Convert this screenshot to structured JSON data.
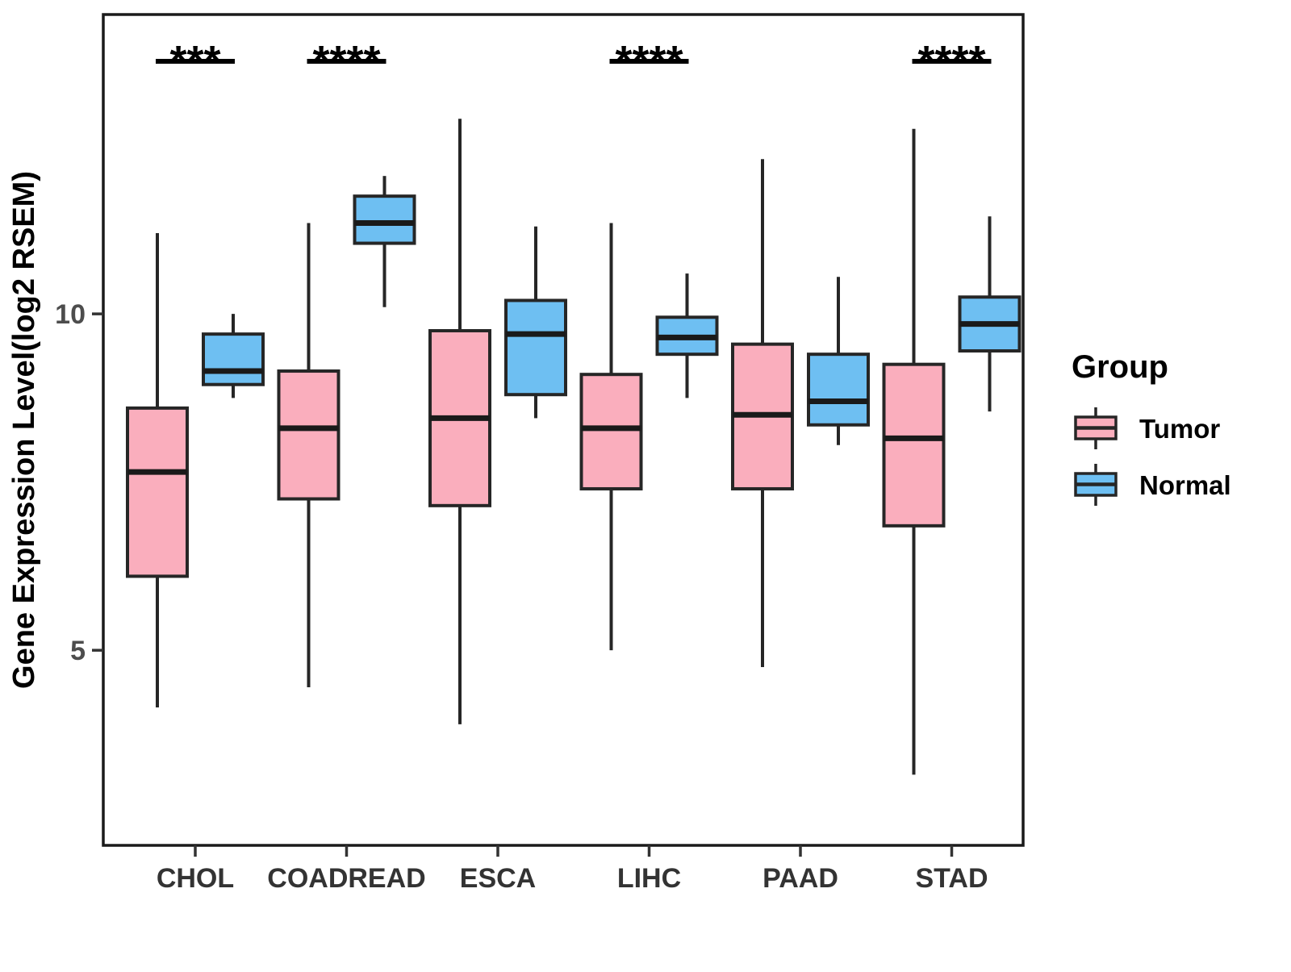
{
  "chart_data": {
    "type": "boxplot",
    "title": "",
    "xlabel": "",
    "ylabel": "Gene Expression Level(log2 RSEM)",
    "categories": [
      "CHOL",
      "COADREAD",
      "ESCA",
      "LIHC",
      "PAAD",
      "STAD"
    ],
    "groups": [
      "Tumor",
      "Normal"
    ],
    "colors": {
      "Tumor": "#FAAEBD",
      "Normal": "#6EBFF2",
      "box_stroke": "#262626",
      "y_axis_text": "#4D4D4D",
      "x_axis_text": "#333333",
      "significance": "#000000"
    },
    "y_axis": {
      "tick_labels": [
        "10",
        "5"
      ],
      "tick_values": [
        10,
        5
      ],
      "range": [
        2.1,
        14.45
      ],
      "grid": false
    },
    "series": [
      {
        "name": "Tumor",
        "boxes": [
          {
            "category": "CHOL",
            "whisker_low": 4.15,
            "q1": 6.1,
            "median": 7.65,
            "q3": 8.6,
            "whisker_high": 11.2
          },
          {
            "category": "COADREAD",
            "whisker_low": 4.45,
            "q1": 7.25,
            "median": 8.3,
            "q3": 9.15,
            "whisker_high": 11.35
          },
          {
            "category": "ESCA",
            "whisker_low": 3.9,
            "q1": 7.15,
            "median": 8.45,
            "q3": 9.75,
            "whisker_high": 12.9
          },
          {
            "category": "LIHC",
            "whisker_low": 5.0,
            "q1": 7.4,
            "median": 8.3,
            "q3": 9.1,
            "whisker_high": 11.35
          },
          {
            "category": "PAAD",
            "whisker_low": 4.75,
            "q1": 7.4,
            "median": 8.5,
            "q3": 9.55,
            "whisker_high": 12.3
          },
          {
            "category": "STAD",
            "whisker_low": 3.15,
            "q1": 6.85,
            "median": 8.15,
            "q3": 9.25,
            "whisker_high": 12.75
          }
        ]
      },
      {
        "name": "Normal",
        "boxes": [
          {
            "category": "CHOL",
            "whisker_low": 8.75,
            "q1": 8.95,
            "median": 9.15,
            "q3": 9.7,
            "whisker_high": 10.0
          },
          {
            "category": "COADREAD",
            "whisker_low": 10.1,
            "q1": 11.05,
            "median": 11.35,
            "q3": 11.75,
            "whisker_high": 12.05
          },
          {
            "category": "ESCA",
            "whisker_low": 8.45,
            "q1": 8.8,
            "median": 9.7,
            "q3": 10.2,
            "whisker_high": 11.3
          },
          {
            "category": "LIHC",
            "whisker_low": 8.75,
            "q1": 9.4,
            "median": 9.65,
            "q3": 9.95,
            "whisker_high": 10.6
          },
          {
            "category": "PAAD",
            "whisker_low": 8.05,
            "q1": 8.35,
            "median": 8.7,
            "q3": 9.4,
            "whisker_high": 10.55
          },
          {
            "category": "STAD",
            "whisker_low": 8.55,
            "q1": 9.45,
            "median": 9.85,
            "q3": 10.25,
            "whisker_high": 11.45
          }
        ]
      }
    ],
    "significance": [
      {
        "category": "CHOL",
        "label": "***"
      },
      {
        "category": "COADREAD",
        "label": "****"
      },
      {
        "category": "LIHC",
        "label": "****"
      },
      {
        "category": "STAD",
        "label": "****"
      }
    ],
    "legend": {
      "title": "Group",
      "position": "right",
      "entries": [
        "Tumor",
        "Normal"
      ]
    }
  }
}
